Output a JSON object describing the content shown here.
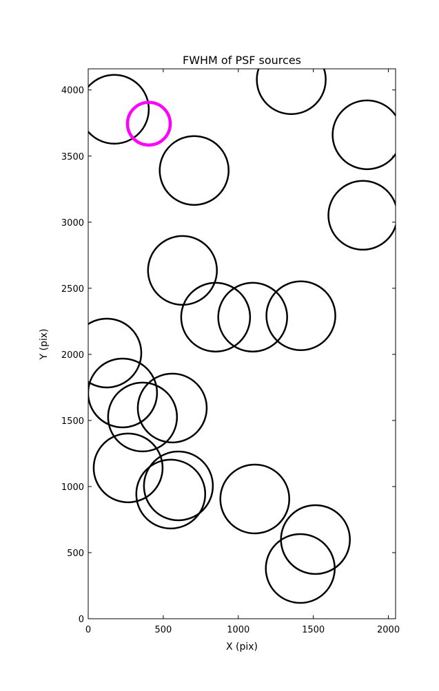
{
  "chart_data": {
    "type": "scatter",
    "title": "FWHM of PSF sources",
    "x_label": "X (pix)",
    "y_label": "Y (pix)",
    "xlim": [
      0,
      2048
    ],
    "ylim": [
      0,
      4160
    ],
    "xticks": [
      0,
      500,
      1000,
      1500,
      2000
    ],
    "yticks": [
      0,
      500,
      1000,
      1500,
      2000,
      2500,
      3000,
      3500,
      4000
    ],
    "series": [
      {
        "color": "#000000",
        "x": [
          174,
          1353,
          1858,
          706,
          1830,
          628,
          849,
          1096,
          1417,
          124,
          229,
          362,
          560,
          266,
          601,
          550,
          1110,
          1514,
          1413
        ],
        "values": [
          3854,
          4078,
          3661,
          3391,
          3052,
          2635,
          2281,
          2281,
          2292,
          2010,
          1708,
          1526,
          1594,
          1141,
          1005,
          943,
          906,
          599,
          380
        ]
      },
      {
        "color": "#ff00ff",
        "x": [
          404
        ],
        "values": [
          3745
        ]
      }
    ]
  }
}
